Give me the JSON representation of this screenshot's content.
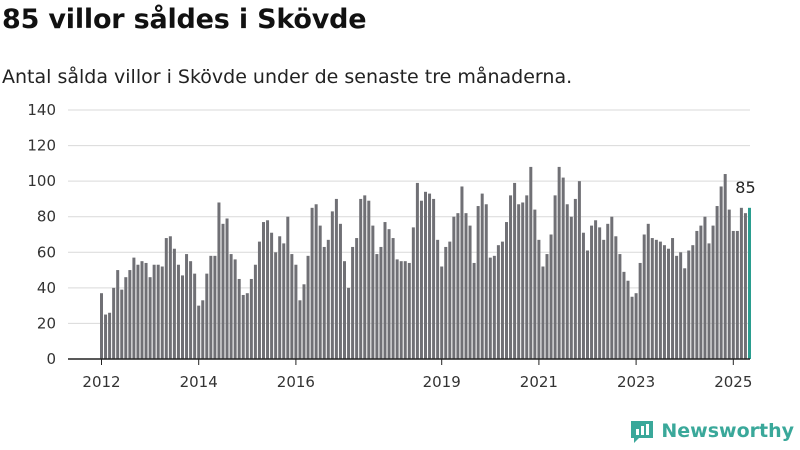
{
  "header": {
    "title": "85 villor såldes i Skövde",
    "subtitle": "Antal sålda villor i Skövde under de senaste tre månaderna."
  },
  "brand": {
    "name": "Newsworthy",
    "logo_icon": "bar-chart-logo-icon"
  },
  "colors": {
    "bar": "#707075",
    "highlight": "#2a9d8f",
    "grid": "#d9d9d9",
    "axis": "#222222"
  },
  "chart_data": {
    "type": "bar",
    "title": "85 villor såldes i Skövde",
    "subtitle": "Antal sålda villor i Skövde under de senaste tre månaderna.",
    "xlabel": "",
    "ylabel": "",
    "ylim": [
      0,
      140
    ],
    "yticks": [
      0,
      20,
      40,
      60,
      80,
      100,
      120,
      140
    ],
    "grid": true,
    "x_tick_labels": [
      "2012",
      "2014",
      "2016",
      "2019",
      "2021",
      "2023",
      "2025"
    ],
    "x_tick_months": [
      0,
      24,
      48,
      84,
      108,
      132,
      156
    ],
    "start_month": "2012-01",
    "annotation": {
      "text": "85",
      "month_index": 159
    },
    "values": [
      37,
      25,
      26,
      40,
      50,
      39,
      46,
      50,
      57,
      53,
      55,
      54,
      46,
      53,
      53,
      52,
      68,
      69,
      62,
      53,
      47,
      59,
      55,
      48,
      30,
      33,
      48,
      58,
      58,
      88,
      76,
      79,
      59,
      56,
      45,
      36,
      37,
      45,
      53,
      66,
      77,
      78,
      71,
      60,
      69,
      65,
      80,
      59,
      53,
      33,
      42,
      58,
      85,
      87,
      75,
      63,
      67,
      83,
      90,
      76,
      55,
      40,
      63,
      68,
      90,
      92,
      89,
      75,
      59,
      63,
      77,
      73,
      68,
      56,
      55,
      55,
      54,
      74,
      99,
      89,
      94,
      93,
      90,
      67,
      52,
      63,
      66,
      80,
      82,
      97,
      82,
      75,
      54,
      86,
      93,
      87,
      57,
      58,
      64,
      66,
      77,
      92,
      99,
      87,
      88,
      92,
      108,
      84,
      67,
      52,
      59,
      70,
      92,
      108,
      102,
      87,
      80,
      90,
      100,
      71,
      61,
      75,
      78,
      74,
      67,
      76,
      80,
      69,
      59,
      49,
      44,
      35,
      37,
      54,
      70,
      76,
      68,
      67,
      66,
      64,
      62,
      68,
      58,
      60,
      51,
      61,
      64,
      72,
      75,
      80,
      65,
      75,
      86,
      97,
      104,
      84,
      72,
      72,
      85,
      82,
      85
    ]
  }
}
